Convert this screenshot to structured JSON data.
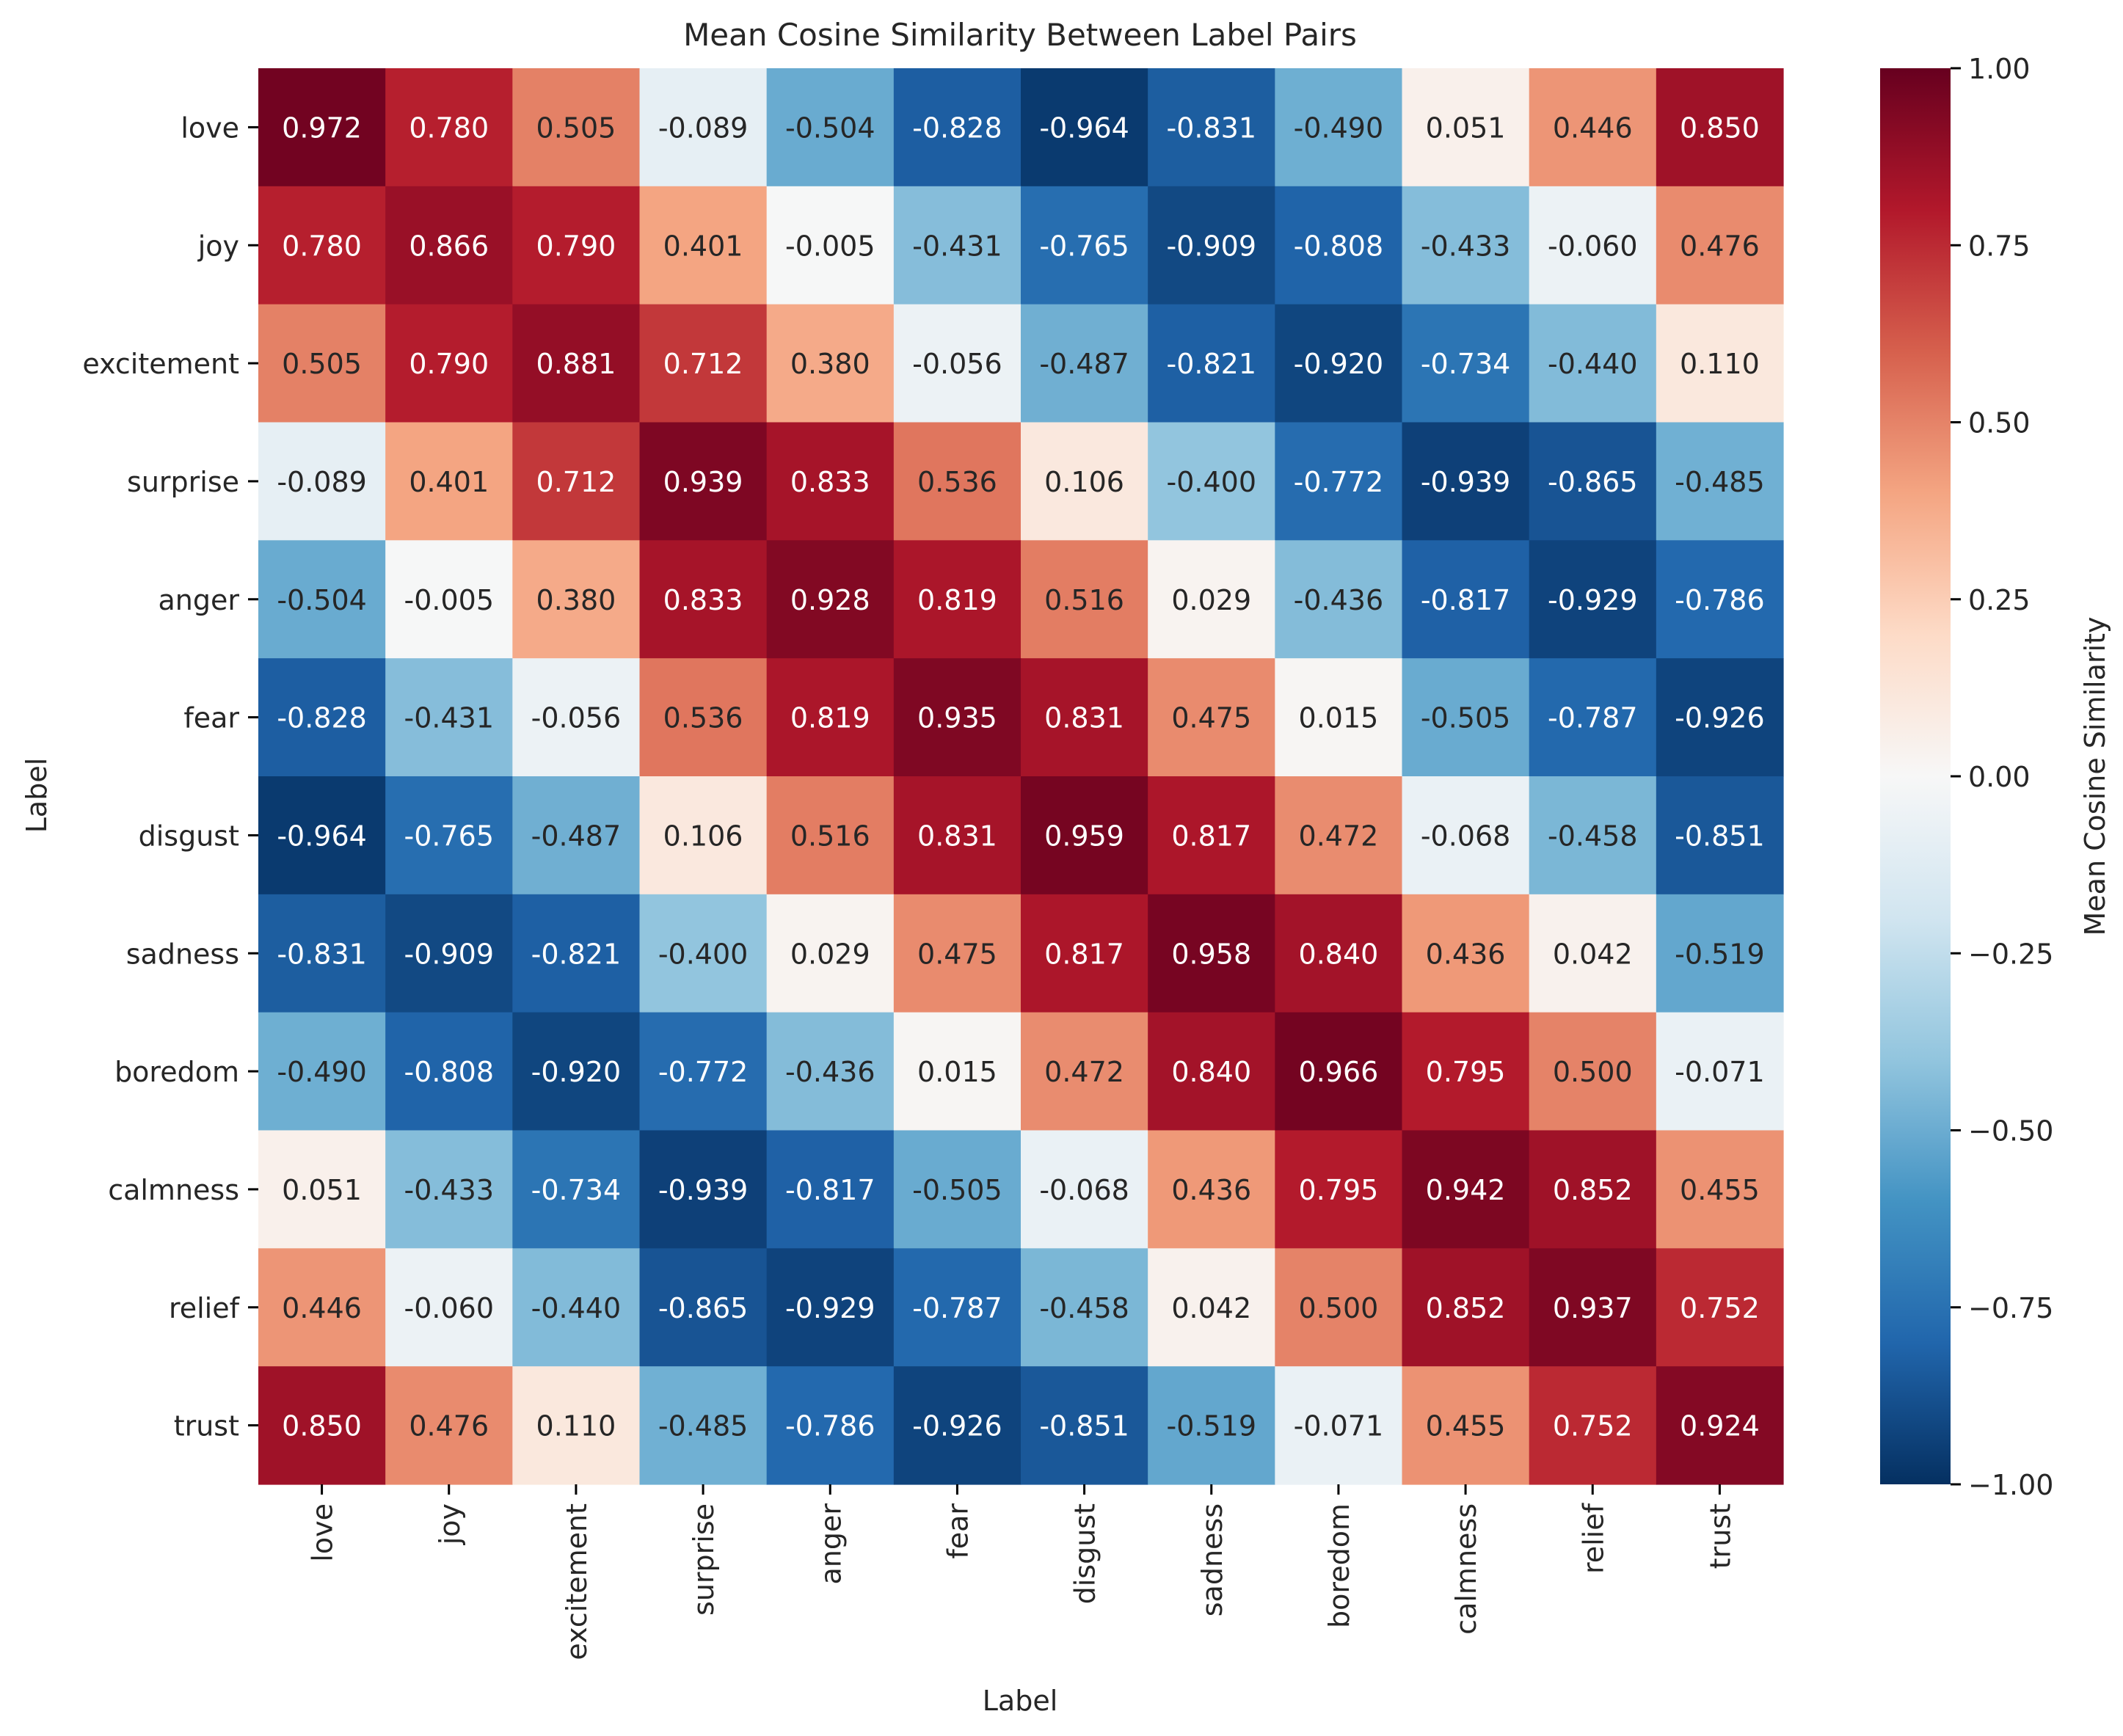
{
  "chart_data": {
    "type": "heatmap",
    "title": "Mean Cosine Similarity Between Label Pairs",
    "xlabel": "Label",
    "ylabel": "Label",
    "row_labels": [
      "love",
      "joy",
      "excitement",
      "surprise",
      "anger",
      "fear",
      "disgust",
      "sadness",
      "boredom",
      "calmness",
      "relief",
      "trust"
    ],
    "col_labels": [
      "love",
      "joy",
      "excitement",
      "surprise",
      "anger",
      "fear",
      "disgust",
      "sadness",
      "boredom",
      "calmness",
      "relief",
      "trust"
    ],
    "values": [
      [
        0.972,
        0.78,
        0.505,
        -0.089,
        -0.504,
        -0.828,
        -0.964,
        -0.831,
        -0.49,
        0.051,
        0.446,
        0.85
      ],
      [
        0.78,
        0.866,
        0.79,
        0.401,
        -0.005,
        -0.431,
        -0.765,
        -0.909,
        -0.808,
        -0.433,
        -0.06,
        0.476
      ],
      [
        0.505,
        0.79,
        0.881,
        0.712,
        0.38,
        -0.056,
        -0.487,
        -0.821,
        -0.92,
        -0.734,
        -0.44,
        0.11
      ],
      [
        -0.089,
        0.401,
        0.712,
        0.939,
        0.833,
        0.536,
        0.106,
        -0.4,
        -0.772,
        -0.939,
        -0.865,
        -0.485
      ],
      [
        -0.504,
        -0.005,
        0.38,
        0.833,
        0.928,
        0.819,
        0.516,
        0.029,
        -0.436,
        -0.817,
        -0.929,
        -0.786
      ],
      [
        -0.828,
        -0.431,
        -0.056,
        0.536,
        0.819,
        0.935,
        0.831,
        0.475,
        0.015,
        -0.505,
        -0.787,
        -0.926
      ],
      [
        -0.964,
        -0.765,
        -0.487,
        0.106,
        0.516,
        0.831,
        0.959,
        0.817,
        0.472,
        -0.068,
        -0.458,
        -0.851
      ],
      [
        -0.831,
        -0.909,
        -0.821,
        -0.4,
        0.029,
        0.475,
        0.817,
        0.958,
        0.84,
        0.436,
        0.042,
        -0.519
      ],
      [
        -0.49,
        -0.808,
        -0.92,
        -0.772,
        -0.436,
        0.015,
        0.472,
        0.84,
        0.966,
        0.795,
        0.5,
        -0.071
      ],
      [
        0.051,
        -0.433,
        -0.734,
        -0.939,
        -0.817,
        -0.505,
        -0.068,
        0.436,
        0.795,
        0.942,
        0.852,
        0.455
      ],
      [
        0.446,
        -0.06,
        -0.44,
        -0.865,
        -0.929,
        -0.787,
        -0.458,
        0.042,
        0.5,
        0.852,
        0.937,
        0.752
      ],
      [
        0.85,
        0.476,
        0.11,
        -0.485,
        -0.786,
        -0.926,
        -0.851,
        -0.519,
        -0.071,
        0.455,
        0.752,
        0.924
      ]
    ],
    "value_format": "3 decimals",
    "colormap": "RdBu_r",
    "vmin": -1.0,
    "vmax": 1.0,
    "colorbar": {
      "label": "Mean Cosine Similarity",
      "ticks": [
        1.0,
        0.75,
        0.5,
        0.25,
        0.0,
        -0.25,
        -0.5,
        -0.75,
        -1.0
      ],
      "tick_labels": [
        "1.00",
        "0.75",
        "0.50",
        "0.25",
        "0.00",
        "−0.25",
        "−0.50",
        "−0.75",
        "−1.00"
      ]
    }
  },
  "colors": {
    "text_dark": "#262626",
    "text_light": "#ffffff",
    "axis": "#000000"
  }
}
